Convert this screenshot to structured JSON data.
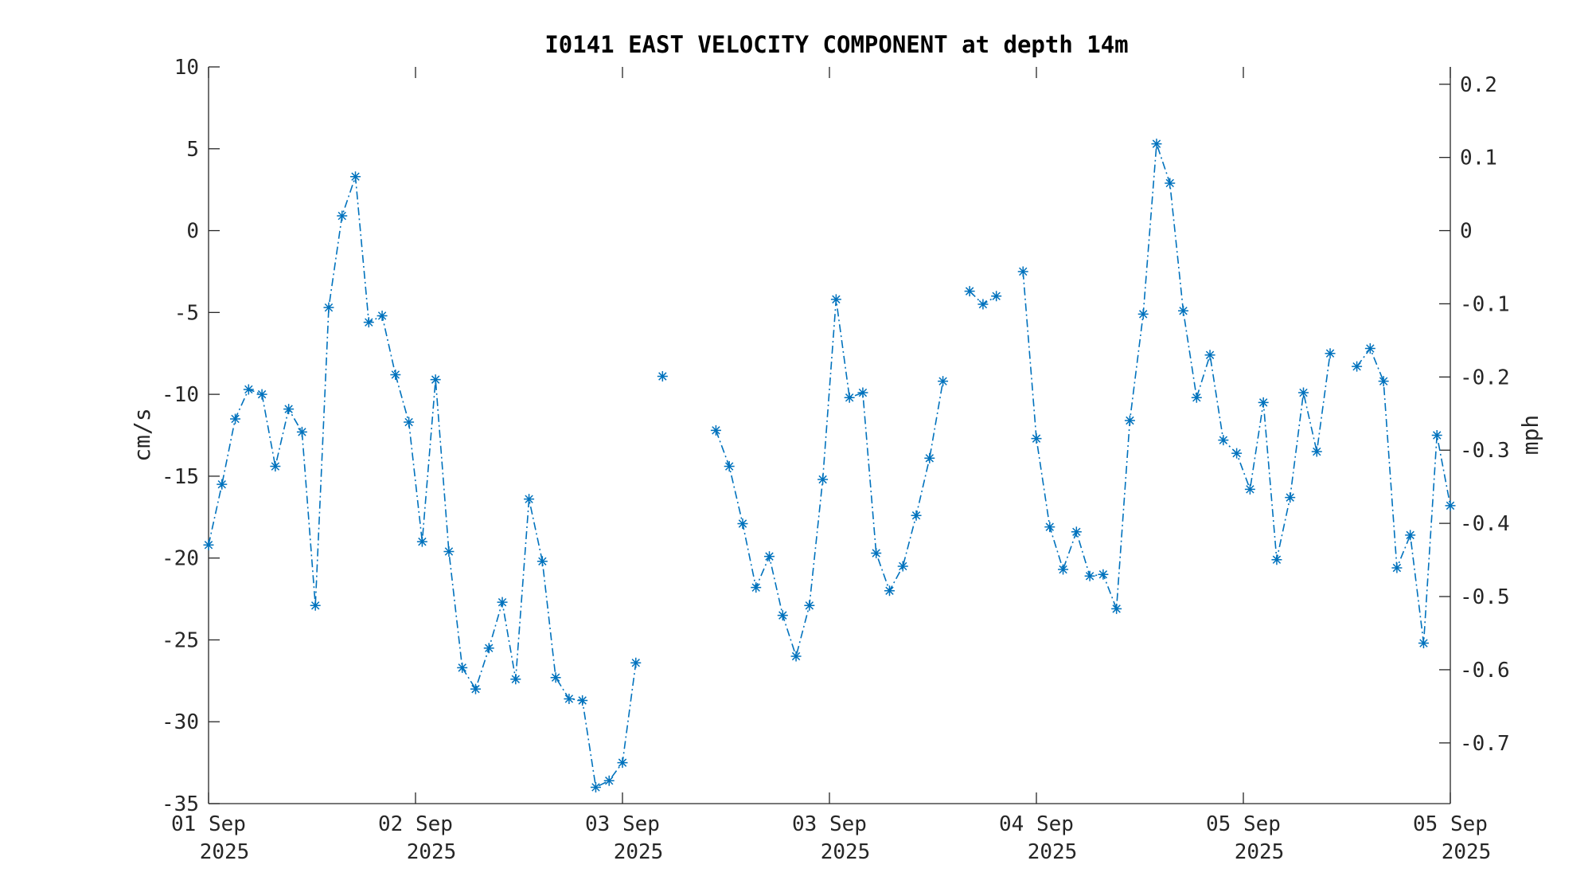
{
  "chart_data": {
    "type": "line",
    "title": "I0141 EAST VELOCITY COMPONENT at depth 14m",
    "ylabel": "cm/s",
    "y2label": "mph",
    "ylim": [
      -35,
      10
    ],
    "yticks": [
      10,
      5,
      0,
      -5,
      -10,
      -15,
      -20,
      -25,
      -30,
      -35
    ],
    "y2ticks": [
      0.2,
      0.1,
      0,
      -0.1,
      -0.2,
      -0.3,
      -0.4,
      -0.5,
      -0.6,
      -0.7
    ],
    "y2tick_labels": [
      "0.2",
      "0.1",
      "0",
      "-0.1",
      "-0.2",
      "-0.3",
      "-0.4",
      "-0.5",
      "-0.6",
      "-0.7"
    ],
    "xlim": [
      "01 Sep 2025",
      "05 Sep 2025"
    ],
    "xtick_labels": [
      [
        "01 Sep",
        "2025"
      ],
      [
        "02 Sep",
        "2025"
      ],
      [
        "03 Sep",
        "2025"
      ],
      [
        "03 Sep",
        "2025"
      ],
      [
        "04 Sep",
        "2025"
      ],
      [
        "05 Sep",
        "2025"
      ],
      [
        "05 Sep",
        "2025"
      ]
    ],
    "grid": false,
    "legend": "none",
    "line_style": "dash-dot",
    "marker": "asterisk",
    "color": "#0072BD",
    "series": [
      {
        "values": [
          -19.2,
          -15.5,
          -11.5,
          -9.7,
          -10.0,
          -14.4,
          -10.9,
          -12.3,
          -22.9,
          -4.7,
          0.9,
          3.3,
          -5.6,
          -5.2,
          -8.8,
          -11.7,
          -19.0,
          -9.1,
          -19.6,
          -26.7,
          -28.0,
          -25.5,
          -22.7,
          -27.4,
          -16.4,
          -20.2,
          -27.3,
          -28.6,
          -28.7,
          -34.0,
          -33.6,
          -32.5,
          -26.4,
          null,
          -8.9,
          null,
          null,
          null,
          -12.2,
          -14.4,
          -17.9,
          -21.8,
          -19.9,
          -23.5,
          -26.0,
          -22.9,
          -15.2,
          -4.2,
          -10.2,
          -9.9,
          -19.7,
          -22.0,
          -20.5,
          -17.4,
          -13.9,
          -9.2,
          null,
          -3.7,
          -4.5,
          -4.0,
          null,
          -2.5,
          -12.7,
          -18.1,
          -20.7,
          -18.4,
          -21.1,
          -21.0,
          -23.1,
          -11.6,
          -5.1,
          5.3,
          2.9,
          -4.9,
          -10.2,
          -7.6,
          -12.8,
          -13.6,
          -15.8,
          -10.5,
          -20.1,
          -16.3,
          -9.9,
          -13.5,
          -7.5,
          null,
          -8.3,
          -7.2,
          -9.2,
          -20.6,
          -18.6,
          -25.2,
          -12.5,
          -16.8
        ]
      }
    ]
  }
}
